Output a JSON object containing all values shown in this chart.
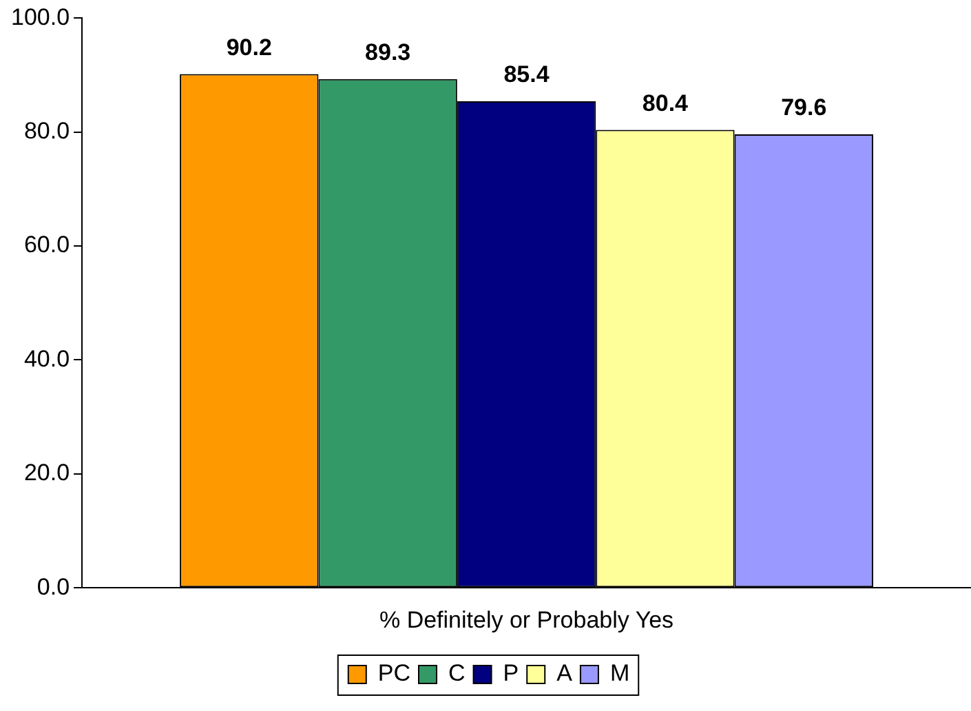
{
  "chart_data": {
    "type": "bar",
    "categories": [
      "% Definitely or Probably Yes"
    ],
    "series": [
      {
        "name": "PC",
        "color": "#ff9900",
        "values": [
          90.2
        ]
      },
      {
        "name": "C",
        "color": "#339966",
        "values": [
          89.3
        ]
      },
      {
        "name": "P",
        "color": "#000080",
        "values": [
          85.4
        ]
      },
      {
        "name": "A",
        "color": "#ffff99",
        "values": [
          80.4
        ]
      },
      {
        "name": "M",
        "color": "#9999ff",
        "values": [
          79.6
        ]
      }
    ],
    "ylim": [
      0,
      100
    ],
    "yticks": [
      {
        "value": 0,
        "label": "0.0"
      },
      {
        "value": 20,
        "label": "20.0"
      },
      {
        "value": 40,
        "label": "40.0"
      },
      {
        "value": 60,
        "label": "60.0"
      },
      {
        "value": 80,
        "label": "80.0"
      },
      {
        "value": 100,
        "label": "100.0"
      }
    ],
    "grid": false,
    "legend": "bottom",
    "data_labels": true
  }
}
